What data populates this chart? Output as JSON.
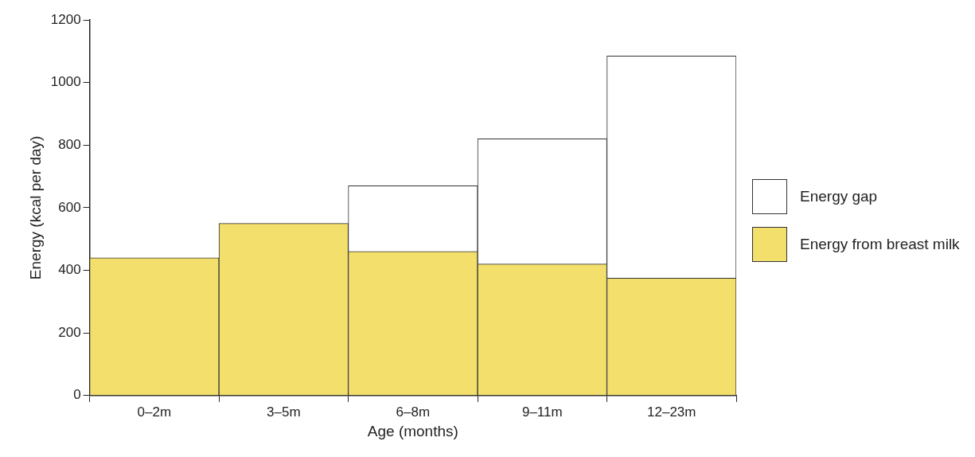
{
  "chart_data": {
    "type": "bar",
    "stacked": true,
    "xlabel": "Age (months)",
    "ylabel": "Energy (kcal per day)",
    "categories": [
      "0–2m",
      "3–5m",
      "6–8m",
      "9–11m",
      "12–23m"
    ],
    "series": [
      {
        "name": "Energy from breast milk",
        "color": "#f3df6c",
        "values": [
          440,
          550,
          460,
          420,
          375
        ]
      },
      {
        "name": "Energy gap",
        "color": "#ffffff",
        "values": [
          0,
          0,
          210,
          400,
          710
        ]
      }
    ],
    "ylim": [
      0,
      1200
    ],
    "yticks": [
      0,
      200,
      400,
      600,
      800,
      1000,
      1200
    ],
    "grid": false,
    "legend": "right"
  }
}
